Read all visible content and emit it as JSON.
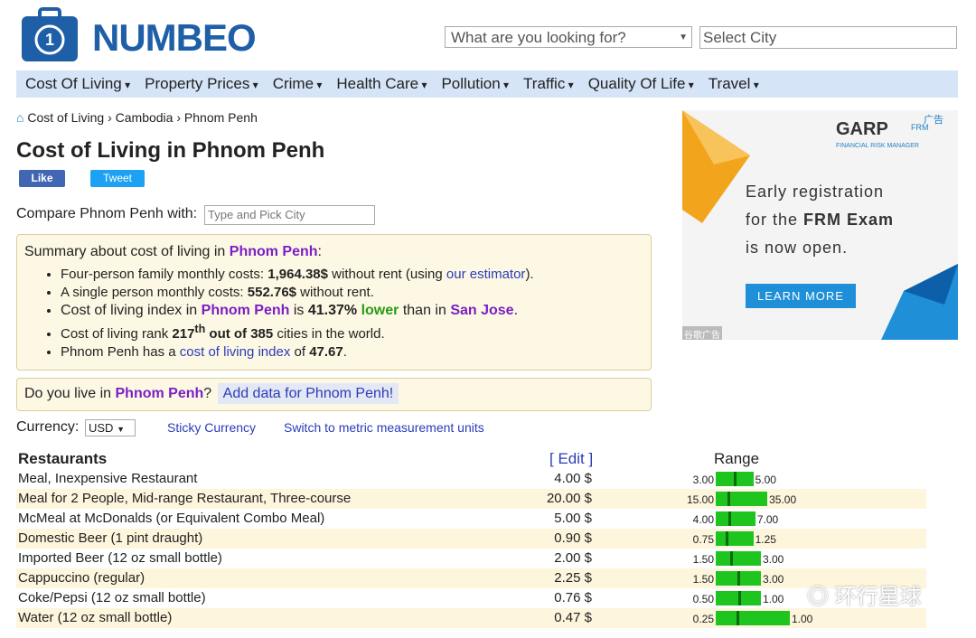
{
  "header": {
    "logo": "NUMBEO",
    "search_placeholder": "What are you looking for?",
    "city_placeholder": "Select City"
  },
  "nav": [
    "Cost Of Living",
    "Property Prices",
    "Crime",
    "Health Care",
    "Pollution",
    "Traffic",
    "Quality Of Life",
    "Travel"
  ],
  "breadcrumb": [
    "Cost of Living",
    "Cambodia",
    "Phnom Penh"
  ],
  "title": "Cost of Living in Phnom Penh",
  "social": [
    "Like",
    "Tweet"
  ],
  "compare": {
    "label": "Compare Phnom Penh with:",
    "placeholder": "Type and Pick City"
  },
  "summary": {
    "intro": [
      "Summary about cost of living in ",
      "Phnom Penh",
      ":"
    ],
    "bullets": [
      [
        "Four-person family monthly costs: ",
        "1,964.38$",
        " without rent (using ",
        "our estimator",
        ")."
      ],
      [
        "A single person monthly costs: ",
        "552.76$",
        " without rent."
      ],
      [
        "Cost of living index in ",
        "Phnom Penh",
        " is ",
        "41.37%",
        " lower",
        " than in ",
        "San Jose",
        "."
      ],
      [
        "Cost of living rank ",
        "217",
        "th",
        " out of 385",
        " cities in the world."
      ],
      [
        "Phnom Penh has a ",
        "cost of living index",
        " of ",
        "47.67",
        "."
      ]
    ]
  },
  "live": {
    "question": [
      "Do you live in ",
      "Phnom Penh",
      "?"
    ],
    "button": "Add data for Phnom Penh!"
  },
  "currency": {
    "label": "Currency:",
    "selected": "USD",
    "sticky": "Sticky Currency",
    "metric": "Switch to metric measurement units"
  },
  "table": {
    "header": [
      "Restaurants",
      "[ Edit ]",
      "Range"
    ],
    "rows": [
      [
        "Meal, Inexpensive Restaurant",
        "4.00 $",
        "3.00",
        "5.00"
      ],
      [
        "Meal for 2 People, Mid-range Restaurant, Three-course",
        "20.00 $",
        "15.00",
        "35.00"
      ],
      [
        "McMeal at McDonalds (or Equivalent Combo Meal)",
        "5.00 $",
        "4.00",
        "7.00"
      ],
      [
        "Domestic Beer (1 pint draught)",
        "0.90 $",
        "0.75",
        "1.25"
      ],
      [
        "Imported Beer (12 oz small bottle)",
        "2.00 $",
        "1.50",
        "3.00"
      ],
      [
        "Cappuccino (regular)",
        "2.25 $",
        "1.50",
        "3.00"
      ],
      [
        "Coke/Pepsi (12 oz small bottle)",
        "0.76 $",
        "0.50",
        "1.00"
      ],
      [
        "Water (12 oz small bottle)",
        "0.47 $",
        "0.25",
        "1.00"
      ]
    ]
  },
  "ad": {
    "badge": "广告",
    "brand": "GARP",
    "brand_tag": "FRM",
    "brand_sub": "FINANCIAL RISK MANAGER",
    "line1": "Early registration",
    "line2": [
      "for the ",
      "FRM Exam"
    ],
    "line3": "is now open.",
    "button": "LEARN MORE",
    "footer": "谷歌广告"
  },
  "watermark": "环行星球"
}
